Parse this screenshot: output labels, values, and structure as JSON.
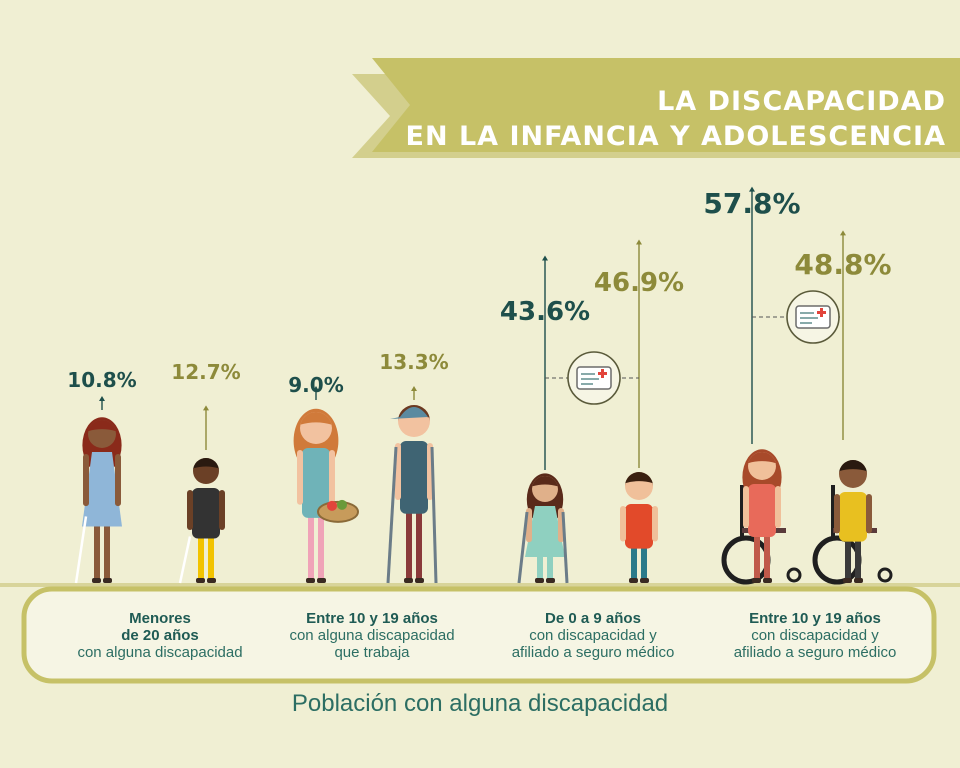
{
  "title": {
    "line1": "LA DISCAPACIDAD",
    "line2": "EN LA INFANCIA Y ADOLESCENCIA"
  },
  "colors": {
    "background": "#f0efd3",
    "banner": "#c6c167",
    "dark_teal": "#1e4f4b",
    "olive": "#8d8a3a",
    "caption_text": "#2c6e63"
  },
  "chart_data": {
    "type": "bar",
    "ylabel": "",
    "categories": [
      {
        "bold": "Menores",
        "bold2": "de 20 años",
        "rest": "con alguna discapacidad",
        "rest2": ""
      },
      {
        "bold": "Entre 10 y 19 años",
        "bold2": "",
        "rest": "con alguna discapacidad",
        "rest2": "que trabaja"
      },
      {
        "bold": "De 0 a 9 años",
        "bold2": "",
        "rest": "con discapacidad y",
        "rest2": "afiliado a seguro médico"
      },
      {
        "bold": "Entre 10 y 19 años",
        "bold2": "",
        "rest": "con discapacidad y",
        "rest2": "afiliado a seguro médico"
      }
    ],
    "series": [
      {
        "values": [
          10.8,
          9.0,
          43.6,
          57.8
        ],
        "labels": [
          "10.8%",
          "9.0%",
          "43.6%",
          "57.8%"
        ],
        "color": "#1e4f4b"
      },
      {
        "values": [
          12.7,
          13.3,
          46.9,
          48.8
        ],
        "labels": [
          "12.7%",
          "13.3%",
          "46.9%",
          "48.8%"
        ],
        "color": "#8d8a3a"
      }
    ],
    "insurance_icon": "health-insurance-card-icon"
  },
  "footer": "Población con alguna discapacidad"
}
